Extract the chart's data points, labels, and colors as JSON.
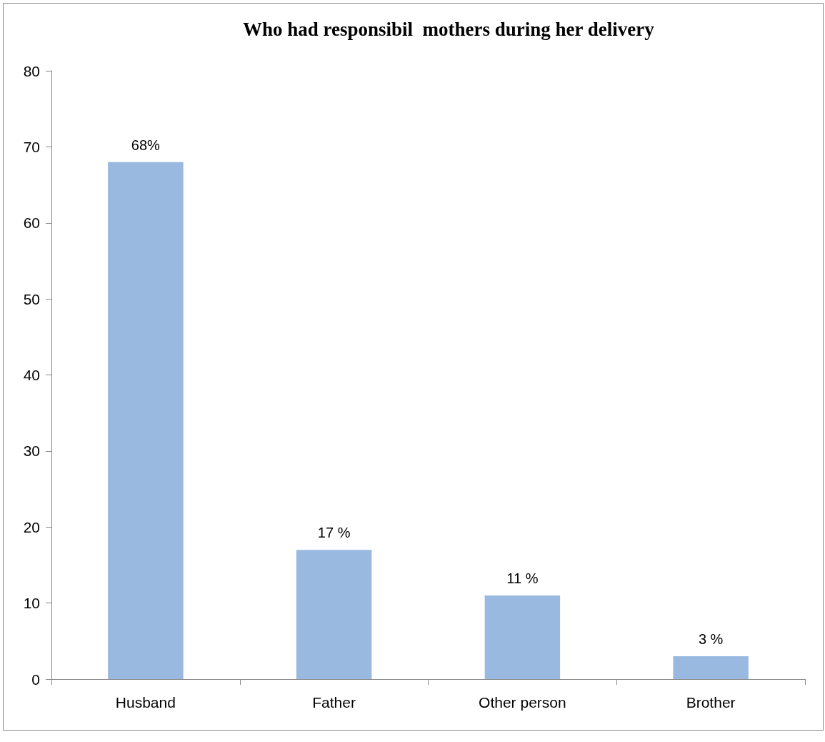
{
  "chart_data": {
    "type": "bar",
    "title": "Who had responsibil  mothers during her delivery",
    "categories": [
      "Husband",
      "Father",
      "Other person",
      "Brother"
    ],
    "values": [
      68,
      17,
      11,
      3
    ],
    "value_labels": [
      "68%",
      "17 %",
      "11 %",
      "3 %"
    ],
    "color": "#9ab9e0",
    "ylim": [
      0,
      80
    ],
    "yticks": [
      0,
      10,
      20,
      30,
      40,
      50,
      60,
      70,
      80
    ],
    "grid": false
  }
}
